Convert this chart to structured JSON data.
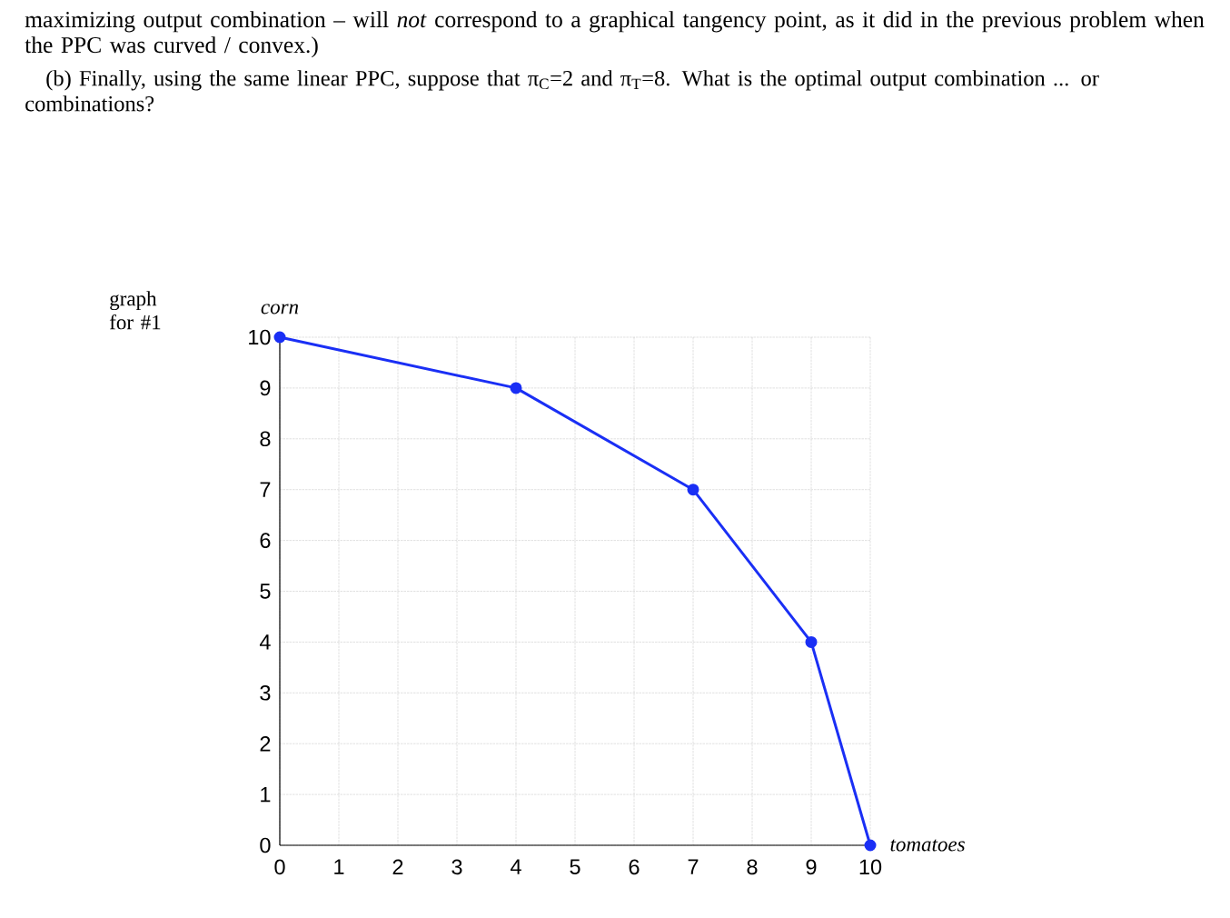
{
  "chart_data": {
    "type": "line",
    "title": "maximizing output combination – will *not* correspond to a graphical tangency point, as it did in the previous problem when the PPC was curved / convex.)",
    "subtitle": "(b) Finally, using the same linear PPC, suppose that π$_{C}$=2 and π$_{T}$=8.  What is the optimal output combination ... or combinations?",
    "annotations": [
      "graph for #1"
    ],
    "xlabel": "tomatoes",
    "ylabel": "corn",
    "x": [
      0,
      4,
      7,
      9,
      10
    ],
    "values": [
      10,
      9,
      7,
      4,
      0
    ],
    "color": "#1a2ff5",
    "xlim": [
      0,
      10
    ],
    "ylim": [
      0,
      10
    ],
    "xticks": [
      0,
      1,
      2,
      3,
      4,
      5,
      6,
      7,
      8,
      9,
      10
    ],
    "yticks": [
      0,
      1,
      2,
      3,
      4,
      5,
      6,
      7,
      8,
      9,
      10
    ],
    "grid": true,
    "marker": "circle",
    "line_style": "solid"
  }
}
